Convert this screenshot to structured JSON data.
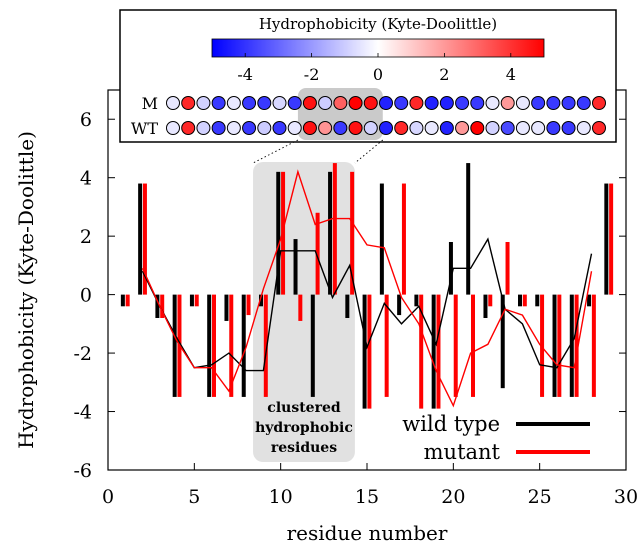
{
  "chart_data": {
    "type": "bar",
    "xlabel": "residue number",
    "ylabel": "Hydrophobicity (Kyte-Doolittle)",
    "xlim": [
      0,
      30
    ],
    "ylim": [
      -6,
      7
    ],
    "xticks": [
      0,
      5,
      10,
      15,
      20,
      25,
      30
    ],
    "yticks": [
      -6,
      -4,
      -2,
      0,
      2,
      4,
      6
    ],
    "x_tick_labels": [
      "0",
      "5",
      "10",
      "15",
      "20",
      "25",
      "30"
    ],
    "y_tick_labels": [
      "-6",
      "-4",
      "-2",
      "0",
      "2",
      "4",
      "6"
    ],
    "legend_position": "bottom-right",
    "legend_labels": [
      "wild type",
      "mutant"
    ],
    "series": [
      {
        "name": "wild type",
        "color": "#000000",
        "residues": [
          1,
          2,
          3,
          4,
          5,
          6,
          7,
          8,
          9,
          10,
          11,
          12,
          13,
          14,
          15,
          16,
          17,
          18,
          19,
          20,
          21,
          22,
          23,
          24,
          25,
          26,
          27,
          28,
          29
        ],
        "values": [
          -0.4,
          3.8,
          -0.8,
          -3.5,
          -0.4,
          -3.5,
          -0.9,
          -3.5,
          -0.4,
          4.2,
          1.9,
          -3.5,
          4.2,
          -0.8,
          -3.9,
          3.8,
          -0.7,
          -0.4,
          -3.9,
          1.8,
          4.5,
          -0.8,
          -3.2,
          -0.4,
          -0.4,
          -3.5,
          -3.5,
          -0.4,
          3.8
        ],
        "moving_average": [
          [
            2,
            0.8
          ],
          [
            3,
            -0.4
          ],
          [
            4,
            -1.5
          ],
          [
            5,
            -2.5
          ],
          [
            6,
            -2.4
          ],
          [
            7,
            -2.0
          ],
          [
            8,
            -2.6
          ],
          [
            9,
            -2.6
          ],
          [
            10,
            1.5
          ],
          [
            11,
            1.5
          ],
          [
            12,
            1.5
          ],
          [
            13,
            -0.1
          ],
          [
            14,
            1.0
          ],
          [
            15,
            -1.8
          ],
          [
            16,
            -0.3
          ],
          [
            17,
            -1.0
          ],
          [
            18,
            -0.4
          ],
          [
            19,
            -1.7
          ],
          [
            20,
            0.9
          ],
          [
            21,
            0.9
          ],
          [
            22,
            1.9
          ],
          [
            23,
            -0.5
          ],
          [
            24,
            -1.0
          ],
          [
            25,
            -2.4
          ],
          [
            26,
            -2.5
          ],
          [
            27,
            -1.5
          ],
          [
            28,
            1.4
          ]
        ]
      },
      {
        "name": "mutant",
        "color": "#ff0000",
        "residues": [
          1,
          2,
          3,
          4,
          5,
          6,
          7,
          8,
          9,
          10,
          11,
          12,
          13,
          14,
          15,
          16,
          17,
          18,
          19,
          20,
          21,
          22,
          23,
          24,
          25,
          26,
          27,
          28,
          29
        ],
        "values": [
          -0.4,
          3.8,
          -0.8,
          -3.5,
          -0.4,
          -3.5,
          -3.5,
          -0.7,
          -3.5,
          4.2,
          -0.9,
          2.8,
          4.5,
          4.2,
          -3.9,
          -3.5,
          3.8,
          -3.9,
          -3.9,
          -3.5,
          -3.5,
          -0.4,
          1.8,
          -0.4,
          -3.5,
          -3.5,
          -3.5,
          -3.5,
          3.8
        ],
        "moving_average": [
          [
            2,
            0.9
          ],
          [
            3,
            -0.4
          ],
          [
            4,
            -1.6
          ],
          [
            5,
            -2.5
          ],
          [
            6,
            -2.5
          ],
          [
            7,
            -3.3
          ],
          [
            8,
            -1.8
          ],
          [
            9,
            0.2
          ],
          [
            10,
            1.9
          ],
          [
            11,
            4.2
          ],
          [
            12,
            2.4
          ],
          [
            13,
            2.6
          ],
          [
            14,
            2.6
          ],
          [
            15,
            1.7
          ],
          [
            16,
            1.6
          ],
          [
            17,
            -0.1
          ],
          [
            18,
            -1.0
          ],
          [
            19,
            -2.6
          ],
          [
            20,
            -3.8
          ],
          [
            21,
            -2.0
          ],
          [
            22,
            -1.7
          ],
          [
            23,
            -0.5
          ],
          [
            24,
            -0.7
          ],
          [
            25,
            -1.7
          ],
          [
            26,
            -2.4
          ],
          [
            27,
            -2.5
          ],
          [
            28,
            0.8
          ]
        ]
      }
    ],
    "highlight": {
      "x_range": [
        8.4,
        14.3
      ],
      "label_lines": [
        "clustered",
        "hydrophobic",
        "residues"
      ]
    },
    "inset": {
      "title": "Hydrophobicity (Kyte-Doolittle)",
      "colorbar_range": [
        -5,
        5
      ],
      "colorbar_ticks": [
        -4,
        -2,
        0,
        2,
        4
      ],
      "colorbar_tick_labels": [
        "-4",
        "-2",
        "0",
        "2",
        "4"
      ],
      "colorbar_low_color": "#0000ff",
      "colorbar_mid_color": "#ffffff",
      "colorbar_high_color": "#ff0000",
      "row_labels": [
        "M",
        "WT"
      ],
      "highlight_residues": [
        10,
        14
      ]
    }
  }
}
